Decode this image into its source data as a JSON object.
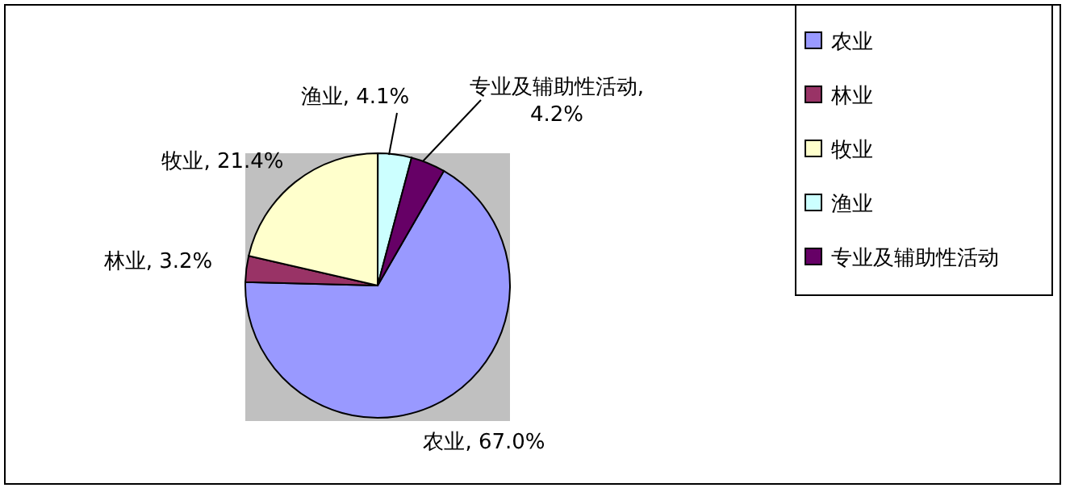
{
  "chart_data": {
    "type": "pie",
    "categories": [
      "农业",
      "林业",
      "牧业",
      "渔业",
      "专业及辅助性活动"
    ],
    "values": [
      67.0,
      3.2,
      21.4,
      4.1,
      4.2
    ],
    "colors": [
      "#9999ff",
      "#993366",
      "#ffffcc",
      "#ccffff",
      "#660066"
    ],
    "value_labels": [
      "农业, 67.0%",
      "林业, 3.2%",
      "牧业, 21.4%",
      "渔业, 4.1%",
      "专业及辅助性活动, 4.2%"
    ],
    "legend": "right"
  }
}
